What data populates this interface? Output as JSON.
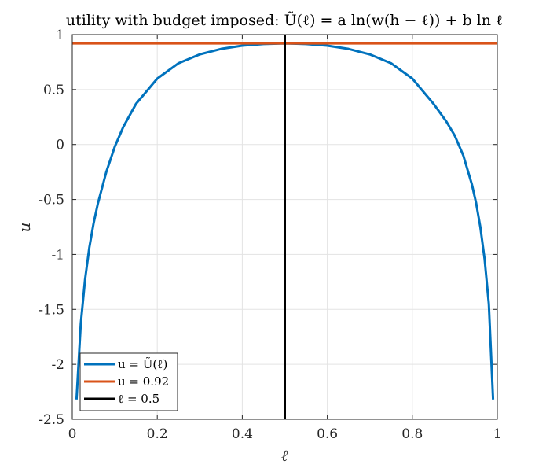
{
  "chart_data": {
    "type": "line",
    "title": "utility with budget imposed: Ũ(ℓ) = a ln(w(h − ℓ)) + b ln ℓ",
    "xlabel": "ℓ",
    "ylabel": "u",
    "xlim": [
      0,
      1
    ],
    "ylim": [
      -2.5,
      1
    ],
    "xticks": [
      0,
      0.2,
      0.4,
      0.6,
      0.8,
      1
    ],
    "xtick_labels": [
      "0",
      "0.2",
      "0.4",
      "0.6",
      "0.8",
      "1"
    ],
    "yticks": [
      -2.5,
      -2,
      -1.5,
      -1,
      -0.5,
      0,
      0.5,
      1
    ],
    "ytick_labels": [
      "-2.5",
      "-2",
      "-1.5",
      "-1",
      "-0.5",
      "0",
      "0.5",
      "1"
    ],
    "grid": true,
    "legend_position": "bottom-left",
    "series": [
      {
        "name": "u = Ũ(ℓ)",
        "color": "#0072BD",
        "x": [
          0.01,
          0.02,
          0.03,
          0.04,
          0.05,
          0.06,
          0.08,
          0.1,
          0.12,
          0.15,
          0.2,
          0.25,
          0.3,
          0.35,
          0.4,
          0.45,
          0.5,
          0.55,
          0.6,
          0.65,
          0.7,
          0.75,
          0.8,
          0.85,
          0.88,
          0.9,
          0.92,
          0.94,
          0.95,
          0.96,
          0.97,
          0.98,
          0.99
        ],
        "y": [
          -2.32,
          -1.63,
          -1.23,
          -0.94,
          -0.72,
          -0.54,
          -0.25,
          -0.02,
          0.16,
          0.37,
          0.6,
          0.74,
          0.82,
          0.87,
          0.9,
          0.915,
          0.92,
          0.915,
          0.9,
          0.87,
          0.82,
          0.74,
          0.6,
          0.37,
          0.21,
          0.08,
          -0.1,
          -0.36,
          -0.53,
          -0.75,
          -1.04,
          -1.45,
          -2.32
        ]
      },
      {
        "name": "u = 0.92",
        "color": "#D95319",
        "x": [
          0,
          1
        ],
        "y": [
          0.92,
          0.92
        ]
      },
      {
        "name": "ℓ = 0.5",
        "color": "#000000",
        "x": [
          0.5,
          0.5
        ],
        "y": [
          -2.5,
          1
        ]
      }
    ]
  }
}
